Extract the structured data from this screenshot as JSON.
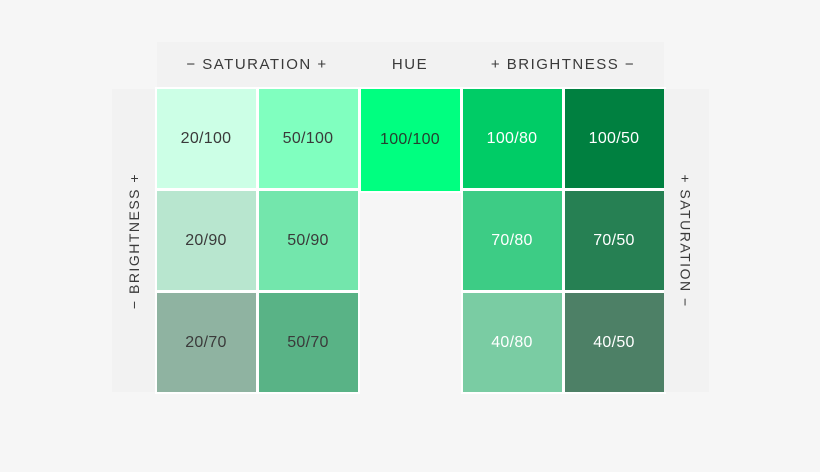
{
  "page": {
    "background": "#f6f6f6",
    "band_background": "#f2f2f2",
    "gap_color": "#ffffff"
  },
  "header": {
    "saturation_label": "− SATURATION +",
    "hue_label": "HUE",
    "brightness_label": "+ BRIGHTNESS −"
  },
  "side_labels": {
    "left": "− BRIGHTNESS +",
    "right": "+ SATURATION −"
  },
  "grid": {
    "value_format": "saturation/brightness",
    "rows": [
      [
        {
          "label": "20/100",
          "color": "#CCFFE6",
          "text_color": "#3a3a3a"
        },
        {
          "label": "50/100",
          "color": "#80FFBF",
          "text_color": "#3a3a3a"
        },
        {
          "label": "100/100",
          "color": "#00FF80",
          "text_color": "#25402f",
          "extend_down": true
        },
        {
          "label": "100/80",
          "color": "#00CC66",
          "text_color": "#ffffff"
        },
        {
          "label": "100/50",
          "color": "#008040",
          "text_color": "#ffffff"
        }
      ],
      [
        {
          "label": "20/90",
          "color": "#B8E6CF",
          "text_color": "#3a3a3a"
        },
        {
          "label": "50/90",
          "color": "#73E6AC",
          "text_color": "#3a3a3a"
        },
        null,
        {
          "label": "70/80",
          "color": "#3DCC85",
          "text_color": "#ffffff"
        },
        {
          "label": "70/50",
          "color": "#268053",
          "text_color": "#ffffff"
        }
      ],
      [
        {
          "label": "20/70",
          "color": "#8FB3A1",
          "text_color": "#3a3a3a"
        },
        {
          "label": "50/70",
          "color": "#59B386",
          "text_color": "#3a3a3a"
        },
        null,
        {
          "label": "40/80",
          "color": "#7ACCA3",
          "text_color": "#ffffff"
        },
        {
          "label": "40/50",
          "color": "#4D8066",
          "text_color": "#ffffff"
        }
      ]
    ]
  }
}
